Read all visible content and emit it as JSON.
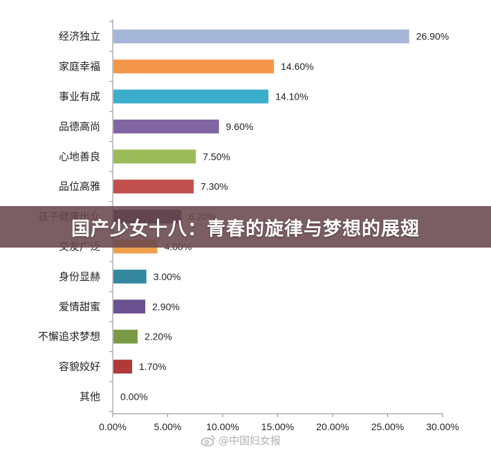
{
  "chart_data": {
    "type": "bar",
    "orientation": "horizontal",
    "categories": [
      "经济独立",
      "家庭幸福",
      "事业有成",
      "品德高尚",
      "心地善良",
      "品位高雅",
      "孩子健康出众",
      "交友广泛",
      "身份显赫",
      "爱情甜蜜",
      "不懈追求梦想",
      "容貌姣好",
      "其他"
    ],
    "values": [
      26.9,
      14.6,
      14.1,
      9.6,
      7.5,
      7.3,
      6.2,
      4.0,
      3.0,
      2.9,
      2.2,
      1.7,
      0.0
    ],
    "value_labels": [
      "26.90%",
      "14.60%",
      "14.10%",
      "9.60%",
      "7.50%",
      "7.30%",
      "6.20%",
      "4.00%",
      "3.00%",
      "2.90%",
      "2.20%",
      "1.70%",
      "0.00%"
    ],
    "colors": [
      "#a6b6d8",
      "#f5974b",
      "#3aaecb",
      "#8064a2",
      "#9bbb59",
      "#c0504d",
      "#3b3660",
      "#f0a04b",
      "#33889e",
      "#6a5190",
      "#7a9a45",
      "#b03a37",
      "#888888"
    ],
    "xlim": [
      0,
      30
    ],
    "xticks": [
      "0.00%",
      "5.00%",
      "10.00%",
      "15.00%",
      "20.00%",
      "25.00%",
      "30.00%"
    ],
    "grid": false,
    "legend": "none"
  },
  "banner": {
    "text": "国产少女十八：青春的旋律与梦想的展翅"
  },
  "watermark": {
    "text": "@中国妇女报",
    "icon": "weibo-icon"
  }
}
